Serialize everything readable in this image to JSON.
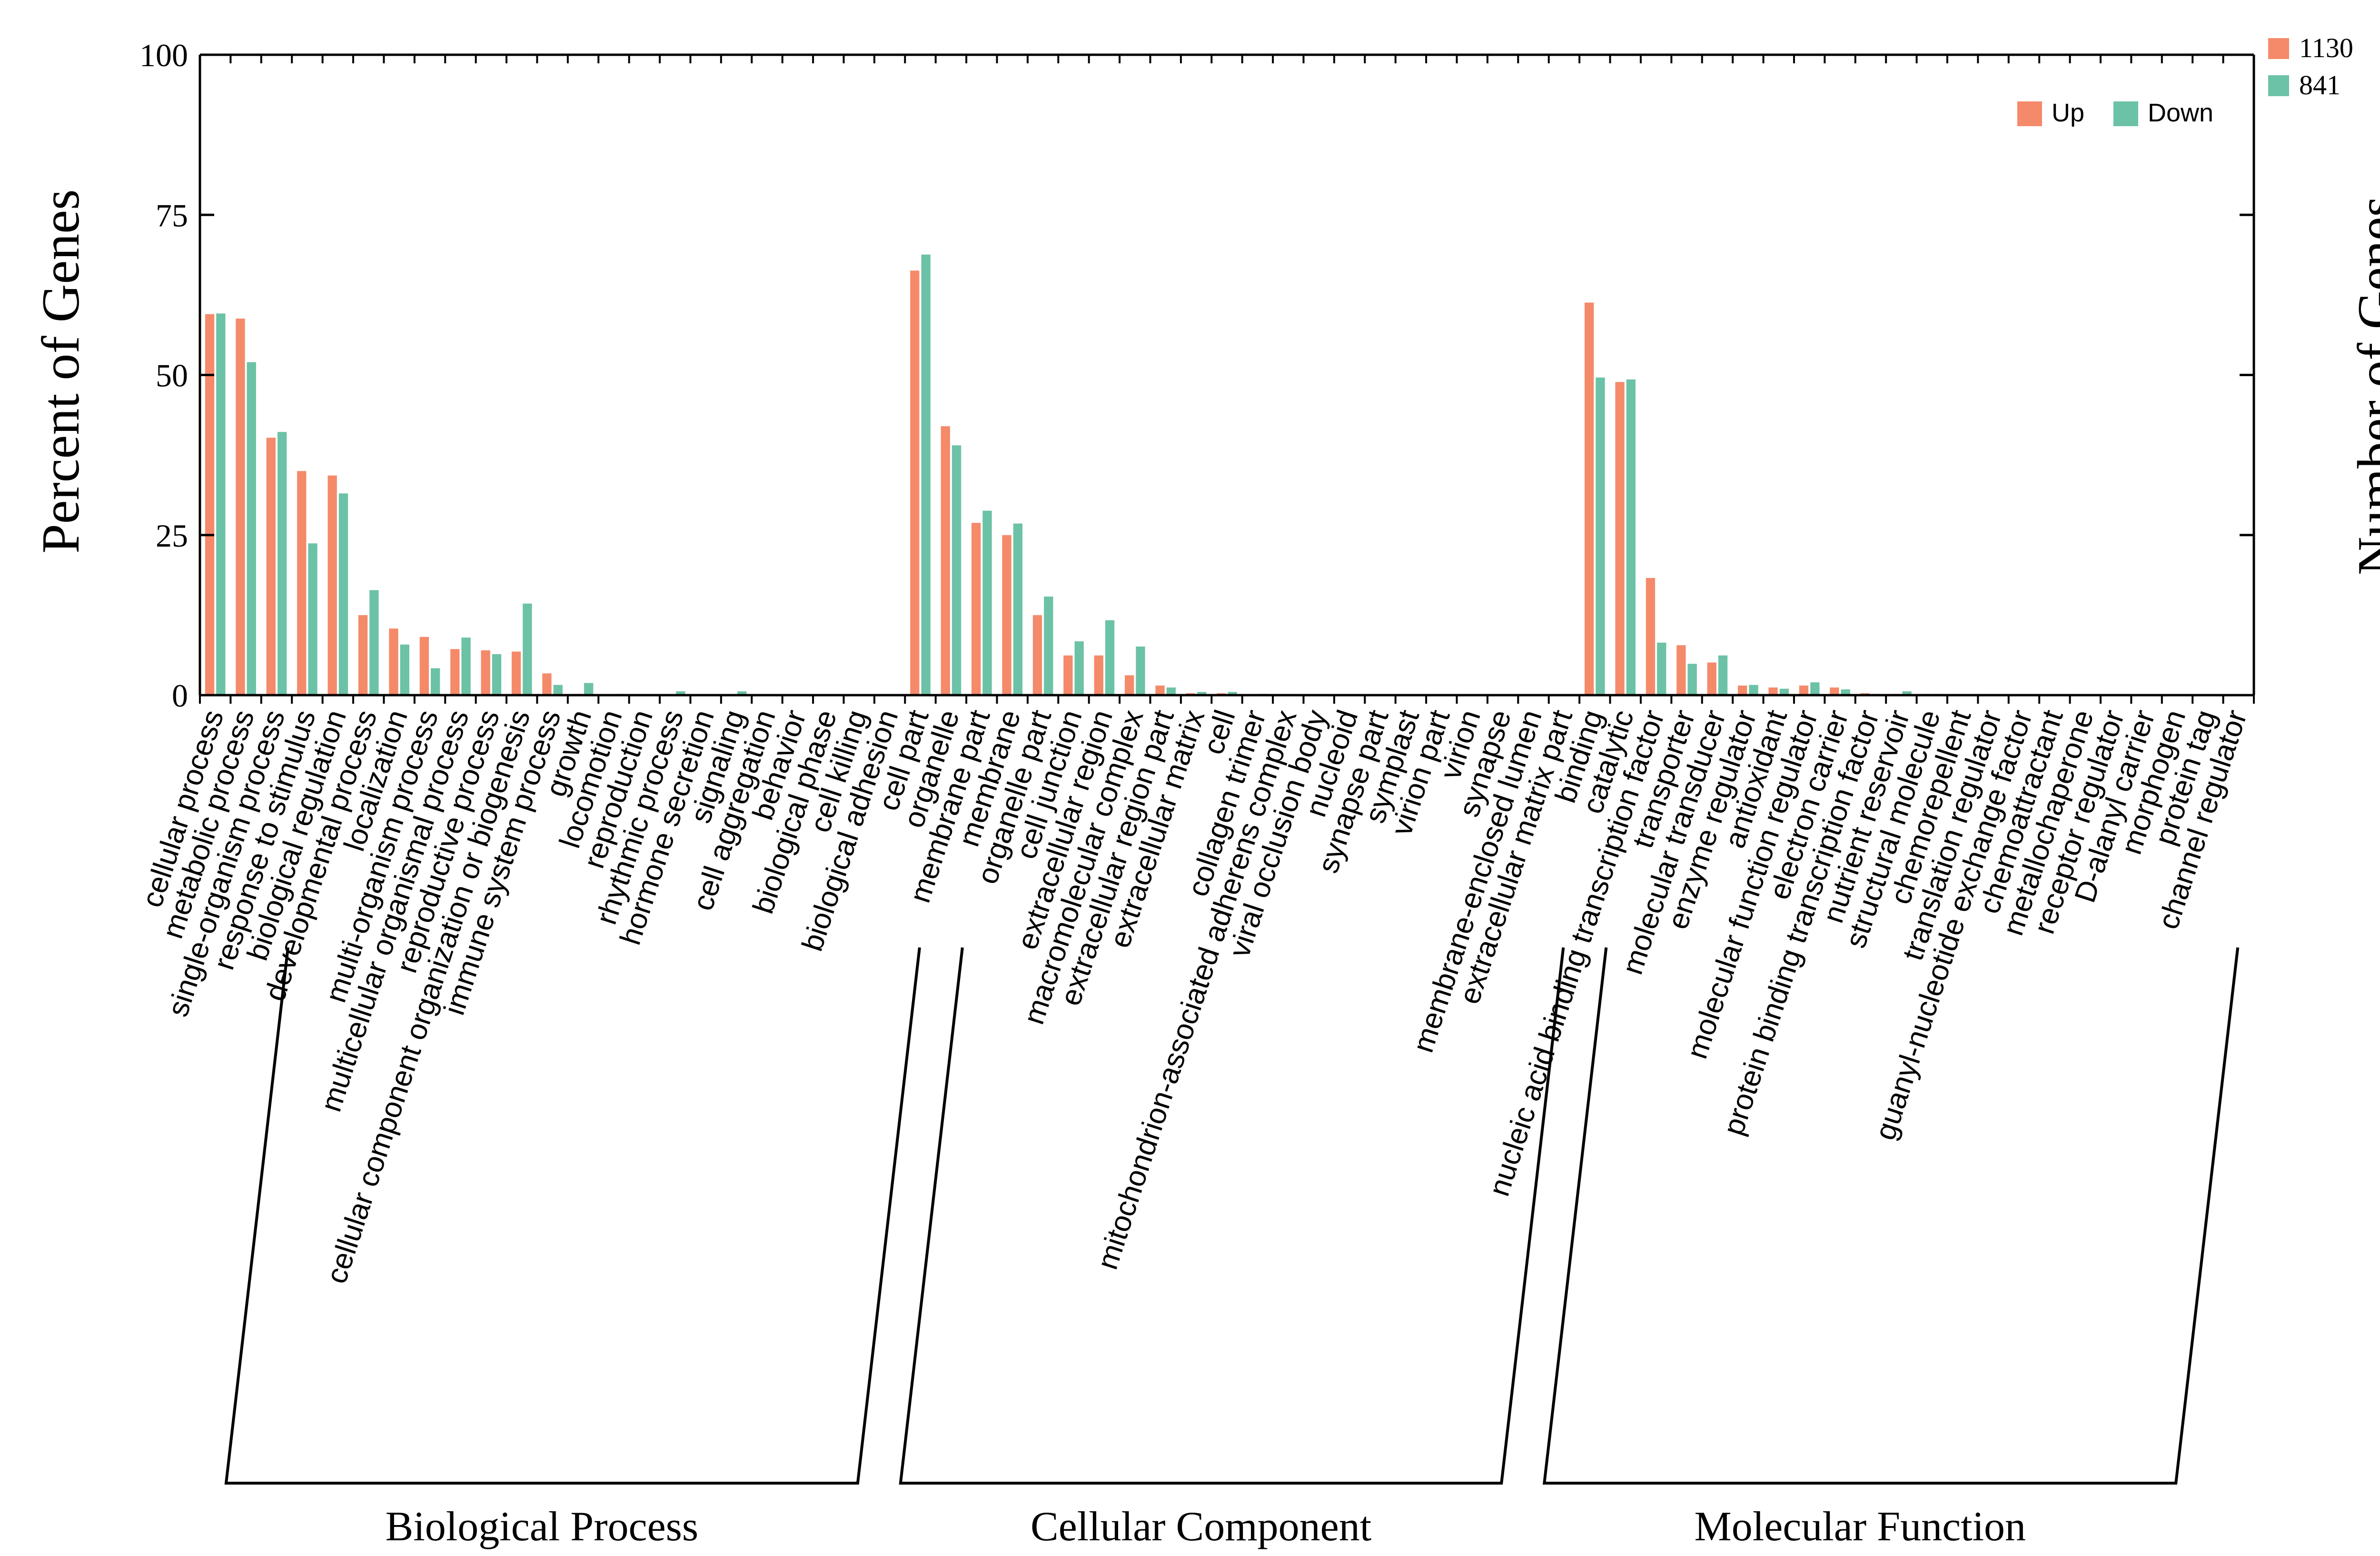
{
  "chart_data": {
    "type": "bar",
    "ylabel": "Percent of Genes",
    "ylabel_right": "Number of Genes",
    "ylim": [
      0,
      100
    ],
    "yticks": [
      0,
      25,
      50,
      75,
      100
    ],
    "right_ticks": [
      "1130",
      "841"
    ],
    "legend": {
      "placement": "top-right",
      "entries": [
        "Up",
        "Down"
      ]
    },
    "colors": {
      "Up": "#F48A6A",
      "Down": "#6CC2A6"
    },
    "groups": [
      {
        "name": "Biological Process",
        "start": 0,
        "end": 22
      },
      {
        "name": "Cellular Component",
        "start": 22,
        "end": 43
      },
      {
        "name": "Molecular Function",
        "start": 43,
        "end": 65
      }
    ],
    "categories": [
      "cellular process",
      "metabolic process",
      "single-organism process",
      "response to stimulus",
      "biological regulation",
      "developmental process",
      "localization",
      "multi-organism process",
      "multicellular organismal process",
      "reproductive process",
      "cellular component organization or biogenesis",
      "immune system process",
      "growth",
      "locomotion",
      "reproduction",
      "rhythmic process",
      "hormone secretion",
      "signaling",
      "cell aggregation",
      "behavior",
      "biological phase",
      "cell killing",
      "biological adhesion",
      "cell part",
      "organelle",
      "membrane part",
      "membrane",
      "organelle part",
      "cell junction",
      "extracellular region",
      "macromolecular complex",
      "extracellular region part",
      "extracellular matrix",
      "cell",
      "collagen trimer",
      "mitochondrion-associated adherens complex",
      "viral occlusion body",
      "nucleoid",
      "synapse part",
      "symplast",
      "virion part",
      "virion",
      "synapse",
      "membrane-enclosed lumen",
      "extracellular matrix part",
      "binding",
      "catalytic",
      "nucleic acid binding transcription factor",
      "transporter",
      "molecular transducer",
      "enzyme regulator",
      "antioxidant",
      "molecular function regulator",
      "electron carrier",
      "protein binding transcription factor",
      "nutrient reservoir",
      "structural molecule",
      "chemorepellent",
      "translation regulator",
      "guanyl-nucleotide exchange factor",
      "chemoattractant",
      "metallochaperone",
      "receptor regulator",
      "D-alanyl carrier",
      "morphogen",
      "protein tag",
      "channel regulator"
    ],
    "series": [
      {
        "name": "Up",
        "values": [
          59.5,
          58.8,
          40.2,
          35.0,
          34.3,
          12.5,
          10.4,
          9.1,
          7.2,
          7.0,
          6.8,
          3.4,
          0.2,
          0.1,
          0.1,
          0.1,
          0.1,
          0.1,
          0.1,
          0.1,
          0.1,
          0.1,
          0.1,
          66.3,
          42.0,
          26.9,
          25.0,
          12.5,
          6.2,
          6.2,
          3.1,
          1.5,
          0.3,
          0.3,
          0.1,
          0.1,
          0.1,
          0.1,
          0.1,
          0.1,
          0.1,
          0.1,
          0.1,
          0.1,
          0.1,
          61.3,
          48.9,
          18.3,
          7.8,
          5.1,
          1.5,
          1.2,
          1.5,
          1.2,
          0.3,
          0.2,
          0.2,
          0.1,
          0.1,
          0.1,
          0.1,
          0.1,
          0.1,
          0.1,
          0.1,
          0.1,
          0.1
        ]
      },
      {
        "name": "Down",
        "values": [
          59.6,
          52.0,
          41.1,
          23.7,
          31.5,
          16.4,
          7.9,
          4.2,
          9.0,
          6.4,
          14.3,
          1.6,
          1.9,
          0.2,
          0.1,
          0.6,
          0.1,
          0.6,
          0.1,
          0.1,
          0.1,
          0.1,
          0.1,
          68.8,
          39.0,
          28.8,
          26.8,
          15.4,
          8.4,
          11.7,
          7.6,
          1.2,
          0.5,
          0.5,
          0.2,
          0.1,
          0.1,
          0.1,
          0.1,
          0.1,
          0.1,
          0.1,
          0.1,
          0.1,
          0.1,
          49.6,
          49.3,
          8.2,
          4.9,
          6.2,
          1.6,
          1.0,
          2.0,
          0.9,
          0.2,
          0.6,
          0.2,
          0.1,
          0.1,
          0.1,
          0.1,
          0.1,
          0.1,
          0.1,
          0.1,
          0.1,
          0.1
        ]
      }
    ]
  }
}
